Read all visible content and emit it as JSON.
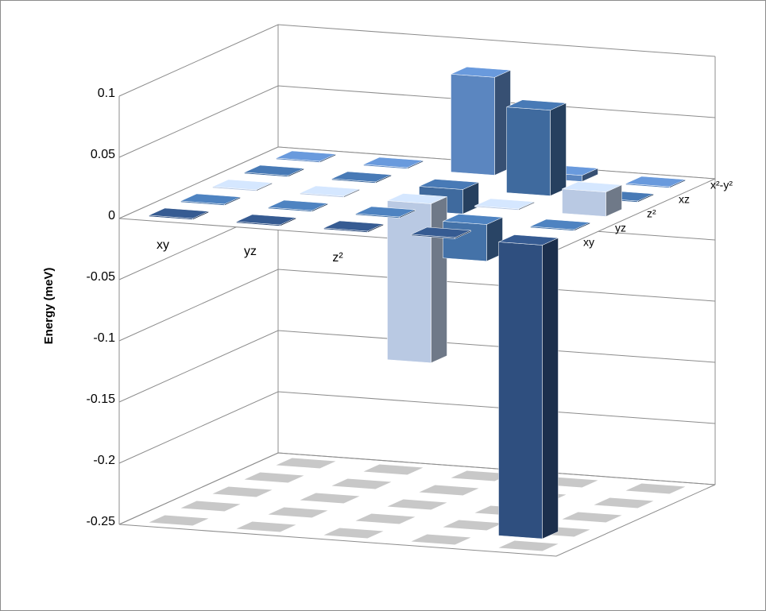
{
  "chart_data": {
    "type": "bar3d",
    "y_label": "Energy (meV)",
    "categories": [
      "xy",
      "yz",
      "z²",
      "xz",
      "x²-y²"
    ],
    "series": [
      {
        "name": "xy",
        "color": "#2f4f7f",
        "values": [
          0.001,
          0.001,
          0.001,
          0.001,
          -0.24
        ]
      },
      {
        "name": "yz",
        "color": "#4472a8",
        "values": [
          0.001,
          0.001,
          0.001,
          -0.03,
          0.001
        ]
      },
      {
        "name": "z²",
        "color": "#b9c9e3",
        "values": [
          0.001,
          0.001,
          -0.13,
          0.001,
          0.02
        ]
      },
      {
        "name": "xz",
        "color": "#3f6a9e",
        "values": [
          0.001,
          0.001,
          -0.02,
          0.07,
          0.001
        ]
      },
      {
        "name": "x²-y²",
        "color": "#5b86c0",
        "values": [
          0.001,
          0.001,
          0.08,
          0.005,
          0.001
        ]
      }
    ],
    "ylim": [
      -0.25,
      0.1
    ],
    "yticks": [
      -0.25,
      -0.2,
      -0.15,
      -0.1,
      -0.05,
      0,
      0.05,
      0.1
    ],
    "grid": true
  }
}
